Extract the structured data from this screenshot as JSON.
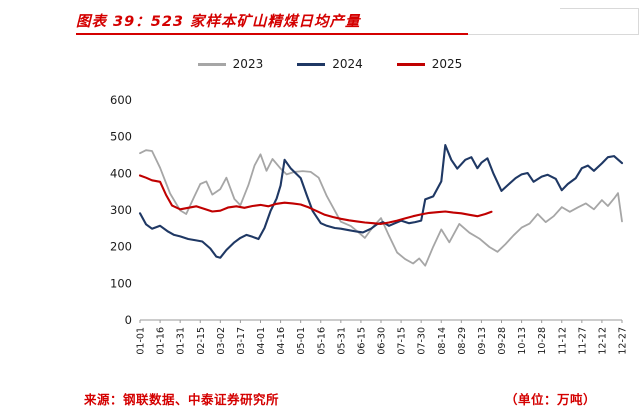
{
  "header": {
    "title": "图表 39：523 家样本矿山精煤日均产量"
  },
  "footer": {
    "source": "来源：钢联数据、中泰证券研究所",
    "unit": "（单位：万吨）"
  },
  "colors": {
    "accent_red": "#d40000",
    "axis_gray": "#9a9a9a",
    "rule_gray": "#d9d9d9",
    "text_black": "#1a1a1a",
    "series_2023": "#a6a6a6",
    "series_2024": "#1f3864",
    "series_2025": "#c00000"
  },
  "chart_data": {
    "type": "line",
    "title": "523 家样本矿山精煤日均产量",
    "unit": "万吨",
    "grid": false,
    "legend_position": "top",
    "ylim": [
      0,
      600
    ],
    "yticks": [
      0,
      100,
      200,
      300,
      400,
      500,
      600
    ],
    "x_tick_labels": [
      "01-01",
      "01-16",
      "01-31",
      "02-15",
      "03-02",
      "03-17",
      "04-01",
      "04-16",
      "05-01",
      "05-16",
      "05-31",
      "06-15",
      "06-30",
      "07-15",
      "07-30",
      "08-14",
      "08-29",
      "09-13",
      "09-28",
      "10-13",
      "10-28",
      "11-12",
      "11-27",
      "12-12",
      "12-27"
    ],
    "x_encoding": "points are [fractional_tick_index, value]; tick index 0–24 maps to the x_tick_labels dates",
    "series": [
      {
        "name": "2023",
        "color": "#a6a6a6",
        "points": [
          [
            0,
            455
          ],
          [
            0.3,
            463
          ],
          [
            0.6,
            461
          ],
          [
            1,
            415
          ],
          [
            1.5,
            345
          ],
          [
            2,
            299
          ],
          [
            2.3,
            289
          ],
          [
            2.7,
            336
          ],
          [
            3,
            371
          ],
          [
            3.3,
            378
          ],
          [
            3.6,
            342
          ],
          [
            4,
            357
          ],
          [
            4.3,
            388
          ],
          [
            4.7,
            330
          ],
          [
            5,
            313
          ],
          [
            5.4,
            368
          ],
          [
            5.7,
            421
          ],
          [
            6,
            452
          ],
          [
            6.3,
            407
          ],
          [
            6.6,
            439
          ],
          [
            7,
            413
          ],
          [
            7.3,
            397
          ],
          [
            7.7,
            404
          ],
          [
            8.1,
            406
          ],
          [
            8.5,
            404
          ],
          [
            8.9,
            388
          ],
          [
            9.3,
            338
          ],
          [
            9.7,
            298
          ],
          [
            10,
            268
          ],
          [
            10.5,
            256
          ],
          [
            10.9,
            238
          ],
          [
            11.2,
            224
          ],
          [
            11.6,
            254
          ],
          [
            12,
            278
          ],
          [
            12.4,
            230
          ],
          [
            12.8,
            184
          ],
          [
            13.2,
            166
          ],
          [
            13.6,
            154
          ],
          [
            13.9,
            168
          ],
          [
            14.2,
            148
          ],
          [
            14.6,
            200
          ],
          [
            15,
            247
          ],
          [
            15.4,
            212
          ],
          [
            15.9,
            262
          ],
          [
            16.4,
            238
          ],
          [
            16.9,
            222
          ],
          [
            17.4,
            199
          ],
          [
            17.8,
            186
          ],
          [
            18.2,
            207
          ],
          [
            18.6,
            231
          ],
          [
            19,
            252
          ],
          [
            19.4,
            263
          ],
          [
            19.8,
            289
          ],
          [
            20.2,
            267
          ],
          [
            20.6,
            283
          ],
          [
            21,
            308
          ],
          [
            21.4,
            295
          ],
          [
            21.8,
            307
          ],
          [
            22.2,
            318
          ],
          [
            22.6,
            302
          ],
          [
            23,
            327
          ],
          [
            23.3,
            311
          ],
          [
            23.6,
            331
          ],
          [
            23.8,
            346
          ],
          [
            24,
            269
          ]
        ]
      },
      {
        "name": "2024",
        "color": "#1f3864",
        "points": [
          [
            0,
            291
          ],
          [
            0.3,
            261
          ],
          [
            0.6,
            249
          ],
          [
            1,
            257
          ],
          [
            1.4,
            241
          ],
          [
            1.7,
            232
          ],
          [
            2,
            228
          ],
          [
            2.4,
            221
          ],
          [
            2.8,
            217
          ],
          [
            3.1,
            214
          ],
          [
            3.5,
            195
          ],
          [
            3.8,
            173
          ],
          [
            4,
            170
          ],
          [
            4.3,
            191
          ],
          [
            4.7,
            212
          ],
          [
            5,
            224
          ],
          [
            5.3,
            232
          ],
          [
            5.6,
            227
          ],
          [
            5.9,
            221
          ],
          [
            6.2,
            251
          ],
          [
            6.5,
            297
          ],
          [
            6.8,
            331
          ],
          [
            7,
            367
          ],
          [
            7.2,
            437
          ],
          [
            7.5,
            414
          ],
          [
            8,
            387
          ],
          [
            8.3,
            341
          ],
          [
            8.6,
            297
          ],
          [
            9,
            264
          ],
          [
            9.3,
            257
          ],
          [
            9.7,
            251
          ],
          [
            10,
            249
          ],
          [
            10.4,
            245
          ],
          [
            10.8,
            241
          ],
          [
            11.1,
            239
          ],
          [
            11.5,
            249
          ],
          [
            11.8,
            261
          ],
          [
            12.1,
            267
          ],
          [
            12.4,
            257
          ],
          [
            12.7,
            264
          ],
          [
            13,
            271
          ],
          [
            13.4,
            264
          ],
          [
            13.7,
            267
          ],
          [
            14,
            271
          ],
          [
            14.2,
            329
          ],
          [
            14.6,
            337
          ],
          [
            15,
            378
          ],
          [
            15.2,
            477
          ],
          [
            15.5,
            437
          ],
          [
            15.8,
            413
          ],
          [
            16.2,
            437
          ],
          [
            16.5,
            444
          ],
          [
            16.8,
            414
          ],
          [
            17,
            429
          ],
          [
            17.3,
            441
          ],
          [
            17.6,
            399
          ],
          [
            18,
            352
          ],
          [
            18.3,
            367
          ],
          [
            18.7,
            387
          ],
          [
            19,
            397
          ],
          [
            19.3,
            401
          ],
          [
            19.6,
            377
          ],
          [
            20,
            391
          ],
          [
            20.3,
            396
          ],
          [
            20.7,
            385
          ],
          [
            21,
            354
          ],
          [
            21.3,
            371
          ],
          [
            21.7,
            387
          ],
          [
            22,
            414
          ],
          [
            22.3,
            421
          ],
          [
            22.6,
            407
          ],
          [
            23,
            427
          ],
          [
            23.3,
            444
          ],
          [
            23.6,
            447
          ],
          [
            24,
            428
          ]
        ]
      },
      {
        "name": "2025",
        "color": "#c00000",
        "points": [
          [
            0,
            394
          ],
          [
            0.3,
            388
          ],
          [
            0.6,
            381
          ],
          [
            1,
            377
          ],
          [
            1.3,
            341
          ],
          [
            1.6,
            312
          ],
          [
            2,
            302
          ],
          [
            2.4,
            306
          ],
          [
            2.8,
            310
          ],
          [
            3.2,
            303
          ],
          [
            3.6,
            296
          ],
          [
            4,
            298
          ],
          [
            4.4,
            307
          ],
          [
            4.8,
            310
          ],
          [
            5.2,
            306
          ],
          [
            5.6,
            311
          ],
          [
            6,
            314
          ],
          [
            6.4,
            310
          ],
          [
            6.8,
            317
          ],
          [
            7.2,
            320
          ],
          [
            7.6,
            318
          ],
          [
            8,
            315
          ],
          [
            8.4,
            307
          ],
          [
            8.8,
            297
          ],
          [
            9.2,
            287
          ],
          [
            9.6,
            281
          ],
          [
            10,
            276
          ],
          [
            10.4,
            272
          ],
          [
            10.8,
            269
          ],
          [
            11.2,
            266
          ],
          [
            11.6,
            264
          ],
          [
            12,
            262
          ],
          [
            12.4,
            266
          ],
          [
            12.8,
            271
          ],
          [
            13.2,
            277
          ],
          [
            13.6,
            283
          ],
          [
            14,
            288
          ],
          [
            14.4,
            292
          ],
          [
            14.8,
            294
          ],
          [
            15.2,
            296
          ],
          [
            15.6,
            293
          ],
          [
            16,
            291
          ],
          [
            16.4,
            287
          ],
          [
            16.8,
            283
          ],
          [
            17.2,
            289
          ],
          [
            17.5,
            295
          ]
        ]
      }
    ]
  }
}
